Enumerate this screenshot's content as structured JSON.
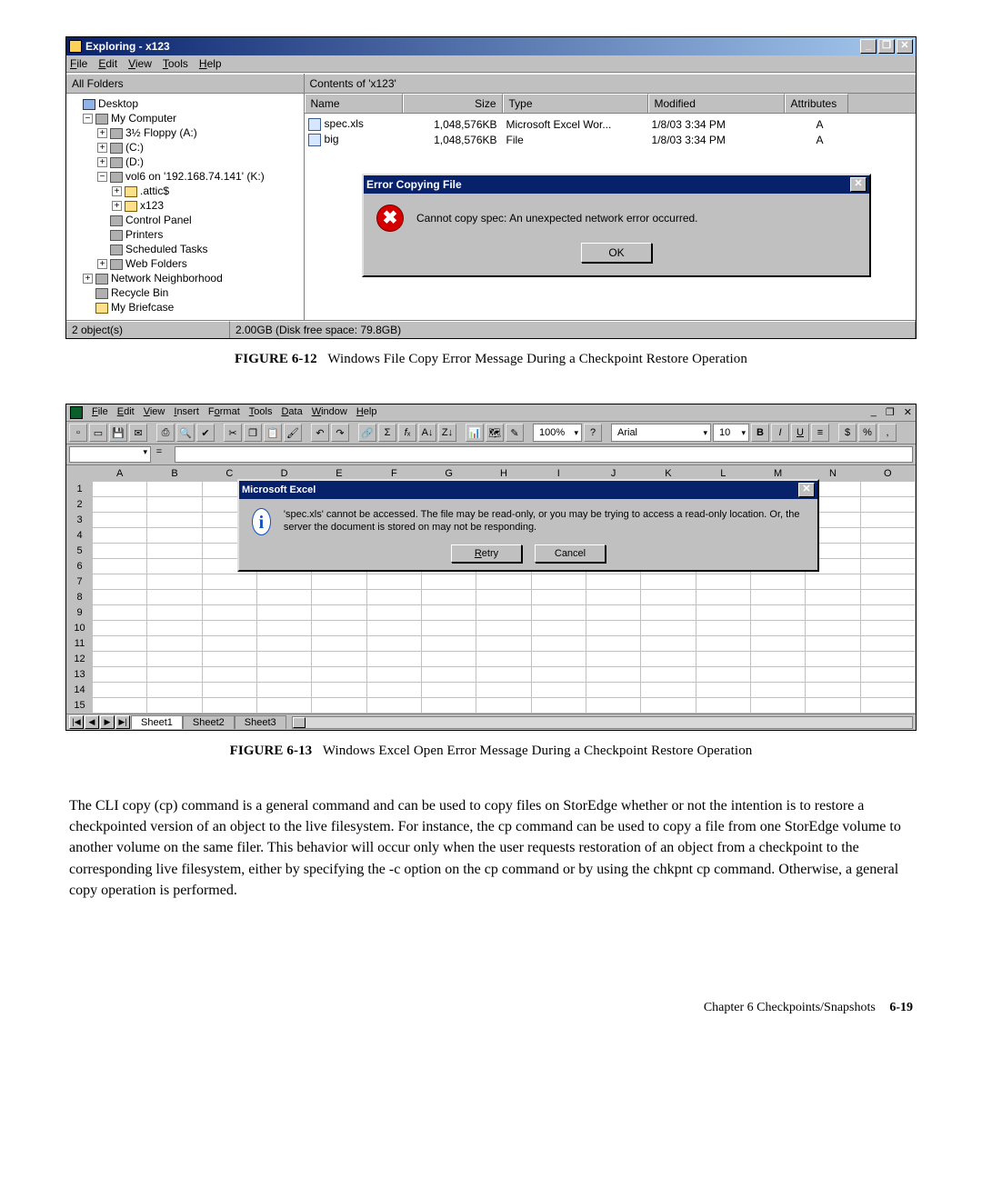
{
  "fig1": {
    "number": "FIGURE 6-12",
    "caption": "Windows File Copy Error Message During a Checkpoint Restore Operation",
    "title": "Exploring - x123",
    "menus": [
      "File",
      "Edit",
      "View",
      "Tools",
      "Help"
    ],
    "left_header": "All Folders",
    "right_header": "Contents of 'x123'",
    "columns": [
      "Name",
      "Size",
      "Type",
      "Modified",
      "Attributes"
    ],
    "tree": [
      {
        "indent": 0,
        "toggle": "",
        "icon": "blue",
        "label": "Desktop"
      },
      {
        "indent": 1,
        "toggle": "−",
        "icon": "grey",
        "label": "My Computer"
      },
      {
        "indent": 2,
        "toggle": "+",
        "icon": "grey",
        "label": "3½ Floppy (A:)"
      },
      {
        "indent": 2,
        "toggle": "+",
        "icon": "grey",
        "label": "(C:)"
      },
      {
        "indent": 2,
        "toggle": "+",
        "icon": "grey",
        "label": "(D:)"
      },
      {
        "indent": 2,
        "toggle": "−",
        "icon": "grey",
        "label": "vol6 on '192.168.74.141' (K:)"
      },
      {
        "indent": 3,
        "toggle": "+",
        "icon": "",
        "label": ".attic$"
      },
      {
        "indent": 3,
        "toggle": "+",
        "icon": "",
        "label": "x123"
      },
      {
        "indent": 2,
        "toggle": "",
        "icon": "grey",
        "label": "Control Panel"
      },
      {
        "indent": 2,
        "toggle": "",
        "icon": "grey",
        "label": "Printers"
      },
      {
        "indent": 2,
        "toggle": "",
        "icon": "grey",
        "label": "Scheduled Tasks"
      },
      {
        "indent": 2,
        "toggle": "+",
        "icon": "grey",
        "label": "Web Folders"
      },
      {
        "indent": 1,
        "toggle": "+",
        "icon": "grey",
        "label": "Network Neighborhood"
      },
      {
        "indent": 1,
        "toggle": "",
        "icon": "grey",
        "label": "Recycle Bin"
      },
      {
        "indent": 1,
        "toggle": "",
        "icon": "",
        "label": "My Briefcase"
      }
    ],
    "files": [
      {
        "name": "spec.xls",
        "size": "1,048,576KB",
        "type": "Microsoft Excel Wor...",
        "modified": "1/8/03 3:34 PM",
        "attr": "A"
      },
      {
        "name": "big",
        "size": "1,048,576KB",
        "type": "File",
        "modified": "1/8/03 3:34 PM",
        "attr": "A"
      }
    ],
    "dialog": {
      "title": "Error Copying File",
      "message": "Cannot copy spec: An unexpected network error occurred.",
      "button": "OK"
    },
    "status_left": "2 object(s)",
    "status_right": "2.00GB (Disk free space: 79.8GB)"
  },
  "fig2": {
    "number": "FIGURE 6-13",
    "caption": "Windows Excel Open Error Message During a Checkpoint Restore Operation",
    "menus": [
      "File",
      "Edit",
      "View",
      "Insert",
      "Format",
      "Tools",
      "Data",
      "Window",
      "Help"
    ],
    "zoom": "100%",
    "font_name": "Arial",
    "font_size": "10",
    "columns": [
      "A",
      "B",
      "C",
      "D",
      "E",
      "F",
      "G",
      "H",
      "I",
      "J",
      "K",
      "L",
      "M",
      "N",
      "O"
    ],
    "rows": 15,
    "dialog": {
      "title": "Microsoft Excel",
      "message": "'spec.xls' cannot be accessed. The file may be read-only, or you may be trying to access a read-only location. Or, the server the document is stored on may not be responding.",
      "retry": "Retry",
      "cancel": "Cancel"
    },
    "tabs": [
      "Sheet1",
      "Sheet2",
      "Sheet3"
    ]
  },
  "body_paragraph": "The CLI copy (cp) command is a general command and can be used to copy files on StorEdge whether or not the intention is to restore a checkpointed version of an object to the live filesystem.  For instance, the cp command can be used to copy a file from one StorEdge volume to another volume on the same filer.  This behavior will occur only when the user requests restoration of an object from a checkpoint to the corresponding live filesystem, either by specifying the -c option on the cp command or by using the chkpnt cp command.  Otherwise, a general copy operation is performed.",
  "footer_chapter": "Chapter 6    Checkpoints/Snapshots",
  "footer_page": "6-19"
}
